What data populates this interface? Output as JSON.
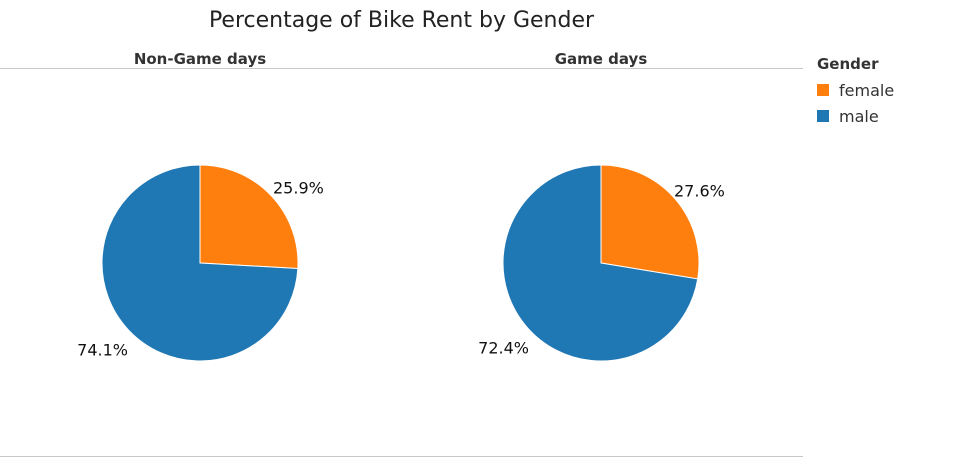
{
  "chart_data": {
    "type": "pie",
    "title": "Percentage of Bike Rent by Gender",
    "legend": {
      "title": "Gender",
      "placement": "right",
      "entries": [
        {
          "label": "female",
          "color": "#ff7f0e"
        },
        {
          "label": "male",
          "color": "#1f77b4"
        }
      ]
    },
    "panels": [
      {
        "label": "Non-Game days",
        "slices": [
          {
            "category": "female",
            "value": 25.9,
            "label": "25.9%",
            "color": "#ff7f0e"
          },
          {
            "category": "male",
            "value": 74.1,
            "label": "74.1%",
            "color": "#1f77b4"
          }
        ]
      },
      {
        "label": "Game days",
        "slices": [
          {
            "category": "female",
            "value": 27.6,
            "label": "27.6%",
            "color": "#ff7f0e"
          },
          {
            "category": "male",
            "value": 72.4,
            "label": "72.4%",
            "color": "#1f77b4"
          }
        ]
      }
    ]
  }
}
